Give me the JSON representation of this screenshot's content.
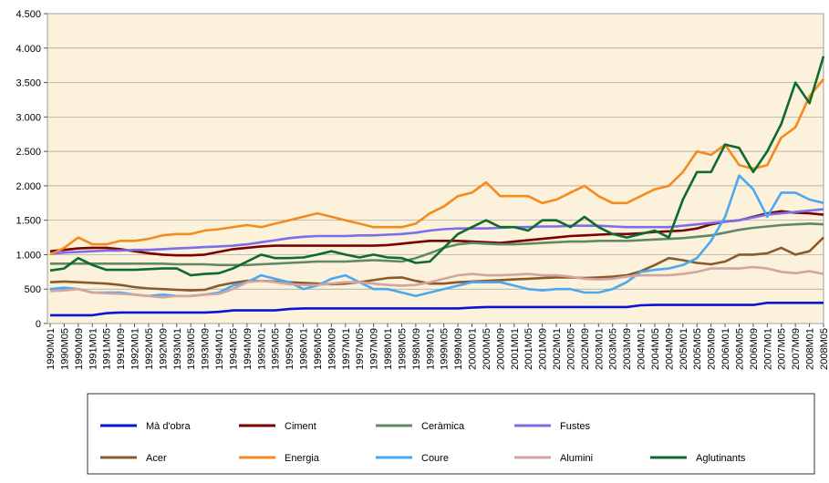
{
  "chart_data": {
    "type": "line",
    "categories": [
      "1990M01",
      "1990M05",
      "1990M09",
      "1991M01",
      "1991M05",
      "1991M09",
      "1992M01",
      "1992M05",
      "1992M09",
      "1993M01",
      "1993M05",
      "1993M09",
      "1994M01",
      "1994M05",
      "1994M09",
      "1995M01",
      "1995M05",
      "1995M09",
      "1996M01",
      "1996M05",
      "1996M09",
      "1997M01",
      "1997M05",
      "1997M09",
      "1998M01",
      "1998M05",
      "1998M09",
      "1999M01",
      "1999M05",
      "1999M09",
      "2000M01",
      "2000M05",
      "2000M09",
      "2001M01",
      "2001M05",
      "2001M09",
      "2002M01",
      "2002M05",
      "2002M09",
      "2003M01",
      "2003M05",
      "2003M09",
      "2004M01",
      "2004M05",
      "2004M09",
      "2005M01",
      "2005M05",
      "2005M09",
      "2006M01",
      "2006M05",
      "2006M09",
      "2007M01",
      "2007M05",
      "2007M09",
      "2008M01",
      "2008M05"
    ],
    "series": [
      {
        "name": "Mà d'obra",
        "color": "#0a14d6",
        "values": [
          120,
          120,
          120,
          120,
          150,
          160,
          160,
          160,
          160,
          160,
          160,
          160,
          170,
          190,
          190,
          190,
          190,
          210,
          220,
          220,
          220,
          220,
          220,
          220,
          220,
          220,
          220,
          220,
          220,
          220,
          230,
          240,
          240,
          240,
          240,
          240,
          240,
          240,
          240,
          240,
          240,
          240,
          265,
          270,
          270,
          270,
          270,
          270,
          270,
          270,
          270,
          300,
          300,
          300,
          300,
          300
        ]
      },
      {
        "name": "Ciment",
        "color": "#7b0000",
        "values": [
          1050,
          1070,
          1090,
          1100,
          1100,
          1080,
          1050,
          1020,
          1000,
          990,
          990,
          1000,
          1040,
          1080,
          1100,
          1120,
          1130,
          1130,
          1130,
          1130,
          1130,
          1130,
          1130,
          1130,
          1140,
          1160,
          1180,
          1200,
          1200,
          1200,
          1190,
          1180,
          1170,
          1190,
          1210,
          1230,
          1250,
          1270,
          1280,
          1290,
          1300,
          1300,
          1310,
          1330,
          1340,
          1350,
          1380,
          1440,
          1480,
          1500,
          1550,
          1600,
          1630,
          1610,
          1600,
          1580
        ]
      },
      {
        "name": "Ceràmica",
        "color": "#5f8a66",
        "values": [
          870,
          870,
          870,
          870,
          870,
          870,
          870,
          870,
          870,
          860,
          860,
          860,
          850,
          850,
          850,
          860,
          870,
          880,
          890,
          900,
          900,
          900,
          910,
          920,
          910,
          900,
          950,
          1020,
          1100,
          1150,
          1170,
          1160,
          1150,
          1150,
          1160,
          1170,
          1180,
          1190,
          1190,
          1200,
          1200,
          1200,
          1210,
          1220,
          1230,
          1240,
          1260,
          1280,
          1320,
          1360,
          1390,
          1410,
          1430,
          1440,
          1450,
          1440
        ]
      },
      {
        "name": "Fustes",
        "color": "#7b6ee8",
        "values": [
          1010,
          1030,
          1040,
          1050,
          1060,
          1060,
          1070,
          1070,
          1080,
          1090,
          1100,
          1110,
          1120,
          1130,
          1150,
          1180,
          1210,
          1240,
          1260,
          1270,
          1270,
          1270,
          1280,
          1280,
          1290,
          1300,
          1320,
          1350,
          1370,
          1380,
          1380,
          1380,
          1390,
          1400,
          1400,
          1410,
          1410,
          1420,
          1420,
          1420,
          1410,
          1400,
          1400,
          1400,
          1400,
          1420,
          1440,
          1460,
          1480,
          1500,
          1540,
          1580,
          1600,
          1620,
          1640,
          1660
        ]
      },
      {
        "name": "Acer",
        "color": "#8b5a2b",
        "values": [
          600,
          610,
          600,
          590,
          580,
          560,
          530,
          510,
          500,
          490,
          480,
          490,
          550,
          590,
          620,
          620,
          610,
          600,
          590,
          580,
          570,
          580,
          600,
          630,
          660,
          670,
          620,
          580,
          580,
          600,
          610,
          620,
          630,
          640,
          650,
          660,
          670,
          670,
          660,
          670,
          680,
          700,
          760,
          850,
          950,
          920,
          880,
          860,
          900,
          1000,
          1000,
          1020,
          1100,
          1000,
          1050,
          1250
        ]
      },
      {
        "name": "Energia",
        "color": "#f58a1f",
        "values": [
          1000,
          1100,
          1250,
          1150,
          1150,
          1200,
          1200,
          1230,
          1280,
          1300,
          1300,
          1350,
          1370,
          1400,
          1430,
          1400,
          1450,
          1500,
          1550,
          1600,
          1550,
          1500,
          1450,
          1400,
          1400,
          1400,
          1450,
          1600,
          1700,
          1850,
          1900,
          2050,
          1850,
          1850,
          1850,
          1750,
          1800,
          1900,
          2000,
          1850,
          1750,
          1750,
          1850,
          1950,
          2000,
          2200,
          2500,
          2450,
          2600,
          2300,
          2250,
          2300,
          2700,
          2850,
          3300,
          3550
        ]
      },
      {
        "name": "Coure",
        "color": "#4aa9f0",
        "values": [
          500,
          520,
          500,
          450,
          450,
          450,
          420,
          400,
          420,
          400,
          400,
          420,
          450,
          550,
          600,
          700,
          650,
          600,
          500,
          550,
          650,
          700,
          600,
          500,
          500,
          450,
          400,
          450,
          500,
          550,
          600,
          600,
          600,
          550,
          500,
          480,
          500,
          500,
          450,
          450,
          500,
          600,
          750,
          780,
          800,
          850,
          950,
          1200,
          1550,
          2150,
          1950,
          1550,
          1900,
          1900,
          1800,
          1750
        ]
      },
      {
        "name": "Alumini",
        "color": "#d4a5a0",
        "values": [
          470,
          480,
          500,
          450,
          440,
          430,
          420,
          400,
          380,
          400,
          400,
          420,
          430,
          500,
          600,
          620,
          600,
          570,
          560,
          560,
          580,
          600,
          600,
          580,
          560,
          550,
          560,
          600,
          650,
          700,
          720,
          700,
          700,
          710,
          720,
          700,
          700,
          680,
          650,
          640,
          650,
          680,
          700,
          700,
          700,
          720,
          750,
          800,
          800,
          800,
          820,
          800,
          750,
          730,
          760,
          720
        ]
      },
      {
        "name": "Aglutinants",
        "color": "#0e6b2e",
        "values": [
          770,
          800,
          950,
          850,
          780,
          780,
          780,
          790,
          800,
          800,
          700,
          720,
          730,
          800,
          900,
          1000,
          950,
          950,
          960,
          1000,
          1050,
          1000,
          960,
          1000,
          960,
          950,
          880,
          900,
          1100,
          1300,
          1400,
          1500,
          1400,
          1400,
          1350,
          1500,
          1500,
          1400,
          1550,
          1400,
          1300,
          1250,
          1300,
          1350,
          1250,
          1800,
          2200,
          2200,
          2600,
          2550,
          2200,
          2500,
          2900,
          3500,
          3200,
          3880
        ]
      }
    ],
    "ylim": [
      0,
      4500
    ],
    "yticks": [
      0,
      500,
      {
        "value": 1000,
        "label": "1.000"
      },
      {
        "value": 1500,
        "label": "1.500"
      },
      {
        "value": 2000,
        "label": "2.000"
      },
      {
        "value": 2500,
        "label": "2.500"
      },
      {
        "value": 3000,
        "label": "3.000"
      },
      {
        "value": 3500,
        "label": "3.500"
      },
      {
        "value": 4000,
        "label": "4.000"
      },
      {
        "value": 4500,
        "label": "4.500"
      }
    ],
    "grid": true,
    "legend": "bottom"
  }
}
